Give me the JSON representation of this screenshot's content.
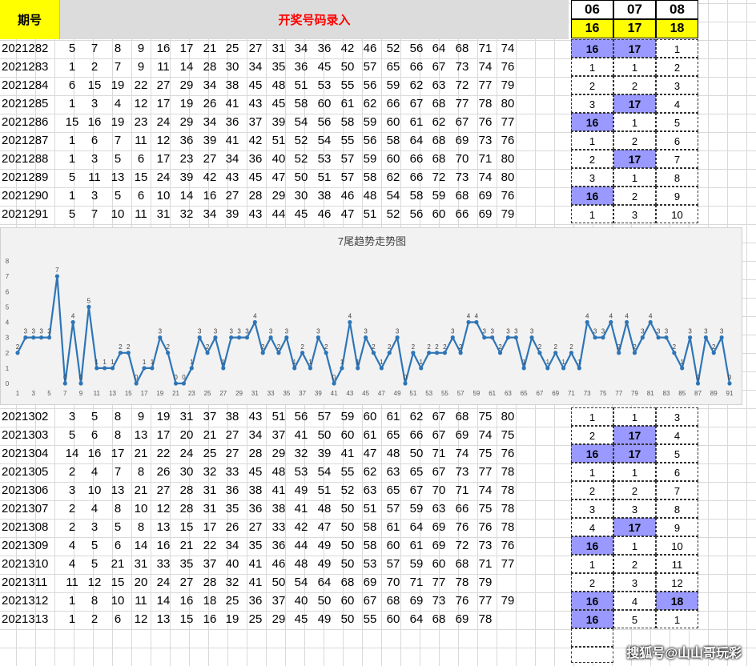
{
  "header": {
    "issue_label": "期号",
    "title": "开奖号码录入"
  },
  "count_columns": [
    {
      "label": "06",
      "value": "16"
    },
    {
      "label": "07",
      "value": "17"
    },
    {
      "label": "08",
      "value": "18"
    }
  ],
  "top_rows": [
    {
      "issue": "2021282",
      "nums": [
        "5",
        "7",
        "8",
        "9",
        "16",
        "17",
        "21",
        "25",
        "27",
        "31",
        "34",
        "36",
        "42",
        "46",
        "52",
        "56",
        "64",
        "68",
        "71",
        "74"
      ],
      "c": [
        "16",
        "17",
        "1"
      ]
    },
    {
      "issue": "2021283",
      "nums": [
        "1",
        "2",
        "7",
        "9",
        "11",
        "14",
        "28",
        "30",
        "34",
        "35",
        "36",
        "45",
        "50",
        "57",
        "65",
        "66",
        "67",
        "73",
        "74",
        "76"
      ],
      "c": [
        "1",
        "1",
        "2"
      ]
    },
    {
      "issue": "2021284",
      "nums": [
        "6",
        "15",
        "19",
        "22",
        "27",
        "29",
        "34",
        "38",
        "45",
        "48",
        "51",
        "53",
        "55",
        "56",
        "59",
        "62",
        "63",
        "72",
        "77",
        "79"
      ],
      "c": [
        "2",
        "2",
        "3"
      ]
    },
    {
      "issue": "2021285",
      "nums": [
        "1",
        "3",
        "4",
        "12",
        "17",
        "19",
        "26",
        "41",
        "43",
        "45",
        "58",
        "60",
        "61",
        "62",
        "66",
        "67",
        "68",
        "77",
        "78",
        "80"
      ],
      "c": [
        "3",
        "17",
        "4"
      ]
    },
    {
      "issue": "2021286",
      "nums": [
        "15",
        "16",
        "19",
        "23",
        "24",
        "29",
        "34",
        "36",
        "37",
        "39",
        "54",
        "56",
        "58",
        "59",
        "60",
        "61",
        "62",
        "67",
        "76",
        "77"
      ],
      "c": [
        "16",
        "1",
        "5"
      ]
    },
    {
      "issue": "2021287",
      "nums": [
        "1",
        "6",
        "7",
        "11",
        "12",
        "36",
        "39",
        "41",
        "42",
        "51",
        "52",
        "54",
        "55",
        "56",
        "58",
        "64",
        "68",
        "69",
        "73",
        "76"
      ],
      "c": [
        "1",
        "2",
        "6"
      ]
    },
    {
      "issue": "2021288",
      "nums": [
        "1",
        "3",
        "5",
        "6",
        "17",
        "23",
        "27",
        "34",
        "36",
        "40",
        "52",
        "53",
        "57",
        "59",
        "60",
        "66",
        "68",
        "70",
        "71",
        "80"
      ],
      "c": [
        "2",
        "17",
        "7"
      ]
    },
    {
      "issue": "2021289",
      "nums": [
        "5",
        "11",
        "13",
        "15",
        "24",
        "39",
        "42",
        "43",
        "45",
        "47",
        "50",
        "51",
        "57",
        "58",
        "62",
        "66",
        "72",
        "73",
        "74",
        "80"
      ],
      "c": [
        "3",
        "1",
        "8"
      ]
    },
    {
      "issue": "2021290",
      "nums": [
        "1",
        "3",
        "5",
        "6",
        "10",
        "14",
        "16",
        "27",
        "28",
        "29",
        "30",
        "38",
        "46",
        "48",
        "54",
        "58",
        "59",
        "68",
        "69",
        "76"
      ],
      "c": [
        "16",
        "2",
        "9"
      ]
    },
    {
      "issue": "2021291",
      "nums": [
        "5",
        "7",
        "10",
        "11",
        "31",
        "32",
        "34",
        "39",
        "43",
        "44",
        "45",
        "46",
        "47",
        "51",
        "52",
        "56",
        "60",
        "66",
        "69",
        "79"
      ],
      "c": [
        "1",
        "3",
        "10"
      ]
    }
  ],
  "bottom_rows": [
    {
      "issue": "2021302",
      "nums": [
        "3",
        "5",
        "8",
        "9",
        "19",
        "31",
        "37",
        "38",
        "43",
        "51",
        "56",
        "57",
        "59",
        "60",
        "61",
        "62",
        "67",
        "68",
        "75",
        "80"
      ],
      "c": [
        "1",
        "1",
        "3"
      ]
    },
    {
      "issue": "2021303",
      "nums": [
        "5",
        "6",
        "8",
        "13",
        "17",
        "20",
        "21",
        "27",
        "34",
        "37",
        "41",
        "50",
        "60",
        "61",
        "65",
        "66",
        "67",
        "69",
        "74",
        "75"
      ],
      "c": [
        "2",
        "17",
        "4"
      ]
    },
    {
      "issue": "2021304",
      "nums": [
        "14",
        "16",
        "17",
        "21",
        "22",
        "24",
        "25",
        "27",
        "28",
        "29",
        "32",
        "39",
        "41",
        "47",
        "48",
        "50",
        "71",
        "74",
        "75",
        "76"
      ],
      "c": [
        "16",
        "17",
        "5"
      ]
    },
    {
      "issue": "2021305",
      "nums": [
        "2",
        "4",
        "7",
        "8",
        "26",
        "30",
        "32",
        "33",
        "45",
        "48",
        "53",
        "54",
        "55",
        "62",
        "63",
        "65",
        "67",
        "73",
        "77",
        "78"
      ],
      "c": [
        "1",
        "1",
        "6"
      ]
    },
    {
      "issue": "2021306",
      "nums": [
        "3",
        "10",
        "13",
        "21",
        "27",
        "28",
        "31",
        "36",
        "38",
        "41",
        "49",
        "51",
        "52",
        "63",
        "65",
        "67",
        "70",
        "71",
        "74",
        "78"
      ],
      "c": [
        "2",
        "2",
        "7"
      ]
    },
    {
      "issue": "2021307",
      "nums": [
        "2",
        "4",
        "8",
        "10",
        "12",
        "28",
        "31",
        "35",
        "36",
        "38",
        "41",
        "48",
        "50",
        "51",
        "57",
        "59",
        "63",
        "66",
        "75",
        "78"
      ],
      "c": [
        "3",
        "3",
        "8"
      ]
    },
    {
      "issue": "2021308",
      "nums": [
        "2",
        "3",
        "5",
        "8",
        "13",
        "15",
        "17",
        "26",
        "27",
        "33",
        "42",
        "47",
        "50",
        "58",
        "61",
        "64",
        "69",
        "76",
        "76",
        "78"
      ],
      "c": [
        "4",
        "17",
        "9"
      ]
    },
    {
      "issue": "2021309",
      "nums": [
        "4",
        "5",
        "6",
        "14",
        "16",
        "21",
        "22",
        "34",
        "35",
        "36",
        "44",
        "49",
        "50",
        "58",
        "60",
        "61",
        "69",
        "72",
        "73",
        "76"
      ],
      "c": [
        "16",
        "1",
        "10"
      ]
    },
    {
      "issue": "2021310",
      "nums": [
        "4",
        "5",
        "21",
        "31",
        "33",
        "35",
        "37",
        "40",
        "41",
        "46",
        "48",
        "49",
        "50",
        "53",
        "57",
        "59",
        "60",
        "68",
        "71",
        "77"
      ],
      "c": [
        "1",
        "2",
        "11"
      ]
    },
    {
      "issue": "2021311",
      "nums": [
        "11",
        "12",
        "15",
        "20",
        "24",
        "27",
        "28",
        "32",
        "41",
        "50",
        "54",
        "64",
        "68",
        "69",
        "70",
        "71",
        "77",
        "78",
        "79"
      ],
      "c": [
        "2",
        "3",
        "12"
      ]
    },
    {
      "issue": "2021312",
      "nums": [
        "1",
        "8",
        "10",
        "11",
        "14",
        "16",
        "18",
        "25",
        "36",
        "37",
        "40",
        "50",
        "60",
        "67",
        "68",
        "69",
        "73",
        "76",
        "77",
        "79"
      ],
      "c": [
        "16",
        "4",
        "18"
      ]
    },
    {
      "issue": "2021313",
      "nums": [
        "1",
        "2",
        "6",
        "12",
        "13",
        "15",
        "16",
        "19",
        "25",
        "29",
        "45",
        "49",
        "50",
        "55",
        "60",
        "64",
        "68",
        "69",
        "78"
      ],
      "c": [
        "16",
        "5",
        "1"
      ]
    }
  ],
  "chart_data": {
    "type": "line",
    "title": "7尾趋势走势图",
    "ylim": [
      0,
      8
    ],
    "yticks": [
      0,
      1,
      2,
      3,
      4,
      5,
      6,
      7,
      8
    ],
    "x_tick_labels": [
      "1",
      "3",
      "5",
      "7",
      "9",
      "11",
      "13",
      "15",
      "17",
      "19",
      "21",
      "23",
      "25",
      "27",
      "29",
      "31",
      "33",
      "35",
      "37",
      "39",
      "41",
      "43",
      "45",
      "47",
      "49",
      "51",
      "53",
      "55",
      "57",
      "59",
      "61",
      "63",
      "65",
      "67",
      "69",
      "71",
      "73",
      "75",
      "77",
      "79",
      "81",
      "83",
      "85",
      "87",
      "89",
      "91"
    ],
    "x": [
      1,
      2,
      3,
      4,
      5,
      6,
      7,
      8,
      9,
      10,
      11,
      12,
      13,
      14,
      15,
      16,
      17,
      18,
      19,
      20,
      21,
      22,
      23,
      24,
      25,
      26,
      27,
      28,
      29,
      30,
      31,
      32,
      33,
      34,
      35,
      36,
      37,
      38,
      39,
      40,
      41,
      42,
      43,
      44,
      45,
      46,
      47,
      48,
      49,
      50,
      51,
      52,
      53,
      54,
      55,
      56,
      57,
      58,
      59,
      60,
      61,
      62,
      63,
      64,
      65,
      66,
      67,
      68,
      69,
      70,
      71,
      72,
      73,
      74,
      75,
      76,
      77,
      78,
      79,
      80,
      81,
      82,
      83,
      84,
      85,
      86,
      87,
      88,
      89,
      90,
      91
    ],
    "values": [
      2,
      3,
      3,
      3,
      3,
      7,
      0,
      4,
      0,
      5,
      1,
      1,
      1,
      2,
      2,
      0,
      1,
      1,
      3,
      2,
      0,
      0,
      1,
      3,
      2,
      3,
      1,
      3,
      3,
      3,
      4,
      2,
      3,
      2,
      3,
      1,
      2,
      1,
      3,
      2,
      0,
      1,
      4,
      1,
      3,
      2,
      1,
      2,
      3,
      0,
      2,
      1,
      2,
      2,
      2,
      3,
      2,
      4,
      4,
      3,
      3,
      2,
      3,
      3,
      1,
      3,
      2,
      1,
      2,
      1,
      2,
      1,
      4,
      3,
      3,
      4,
      2,
      4,
      2,
      3,
      4,
      3,
      3,
      2,
      1,
      3,
      0,
      3,
      2,
      3,
      0
    ],
    "line_color": "#2e75b6"
  },
  "watermark": "搜狐号@山山哥玩彩"
}
